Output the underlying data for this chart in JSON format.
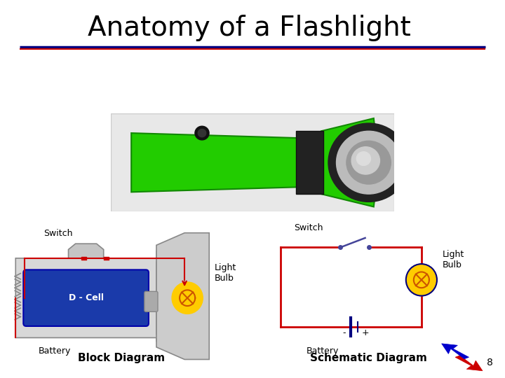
{
  "title": "Anatomy of a Flashlight",
  "title_fontsize": 28,
  "title_color": "#000000",
  "background_color": "#ffffff",
  "block_diagram_label": "Block Diagram",
  "schematic_diagram_label": "Schematic Diagram",
  "switch_label": "Switch",
  "light_bulb_label": "Light\nBulb",
  "battery_label": "Battery",
  "page_number": "8",
  "line_color_red": "#cc0000",
  "line_color_blue": "#000080",
  "battery_color": "#1a237e",
  "bulb_color_yellow": "#ffcc00",
  "wire_color": "#cc0000",
  "gray_light": "#d8d8d8",
  "gray_dark": "#999999"
}
